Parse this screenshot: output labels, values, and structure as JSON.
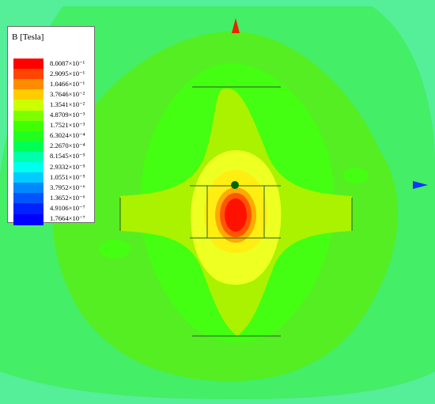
{
  "legend": {
    "title": "B [Tesla]",
    "entries": [
      {
        "label": "8.0087×10⁻¹",
        "color": "#ff0000"
      },
      {
        "label": "2.9095×10⁻¹",
        "color": "#ff4500"
      },
      {
        "label": "1.0466×10⁻¹",
        "color": "#ff8c00"
      },
      {
        "label": "3.7646×10⁻²",
        "color": "#ffcc00"
      },
      {
        "label": "1.3541×10⁻²",
        "color": "#ccff00"
      },
      {
        "label": "4.8709×10⁻³",
        "color": "#7dff00"
      },
      {
        "label": "1.7521×10⁻³",
        "color": "#40ff00"
      },
      {
        "label": "6.3024×10⁻⁴",
        "color": "#20ff20"
      },
      {
        "label": "2.2670×10⁻⁴",
        "color": "#00ff55"
      },
      {
        "label": "8.1545×10⁻⁵",
        "color": "#00ffaa"
      },
      {
        "label": "2.9332×10⁻⁵",
        "color": "#00ffee"
      },
      {
        "label": "1.0551×10⁻⁵",
        "color": "#00ccff"
      },
      {
        "label": "3.7952×10⁻⁶",
        "color": "#0088ff"
      },
      {
        "label": "1.3652×10⁻⁶",
        "color": "#0055ff"
      },
      {
        "label": "4.9106×10⁻⁷",
        "color": "#0022ff"
      },
      {
        "label": "1.7664×10⁻⁷",
        "color": "#0000ff"
      }
    ]
  },
  "field_colors": {
    "outer": "#55ee99",
    "far": "#44ee66",
    "mid": "#55ee22",
    "inner": "#44ff11",
    "arms": "#aaf200",
    "core_ring": "#eeff22",
    "core": "#ffee11",
    "hot1": "#ffaa00",
    "hot2": "#ff5500",
    "hot3": "#ff1100"
  },
  "axis_colors": {
    "z_arrow": "#ee2200",
    "x_arrow": "#1133ff",
    "origin": "#006600"
  }
}
